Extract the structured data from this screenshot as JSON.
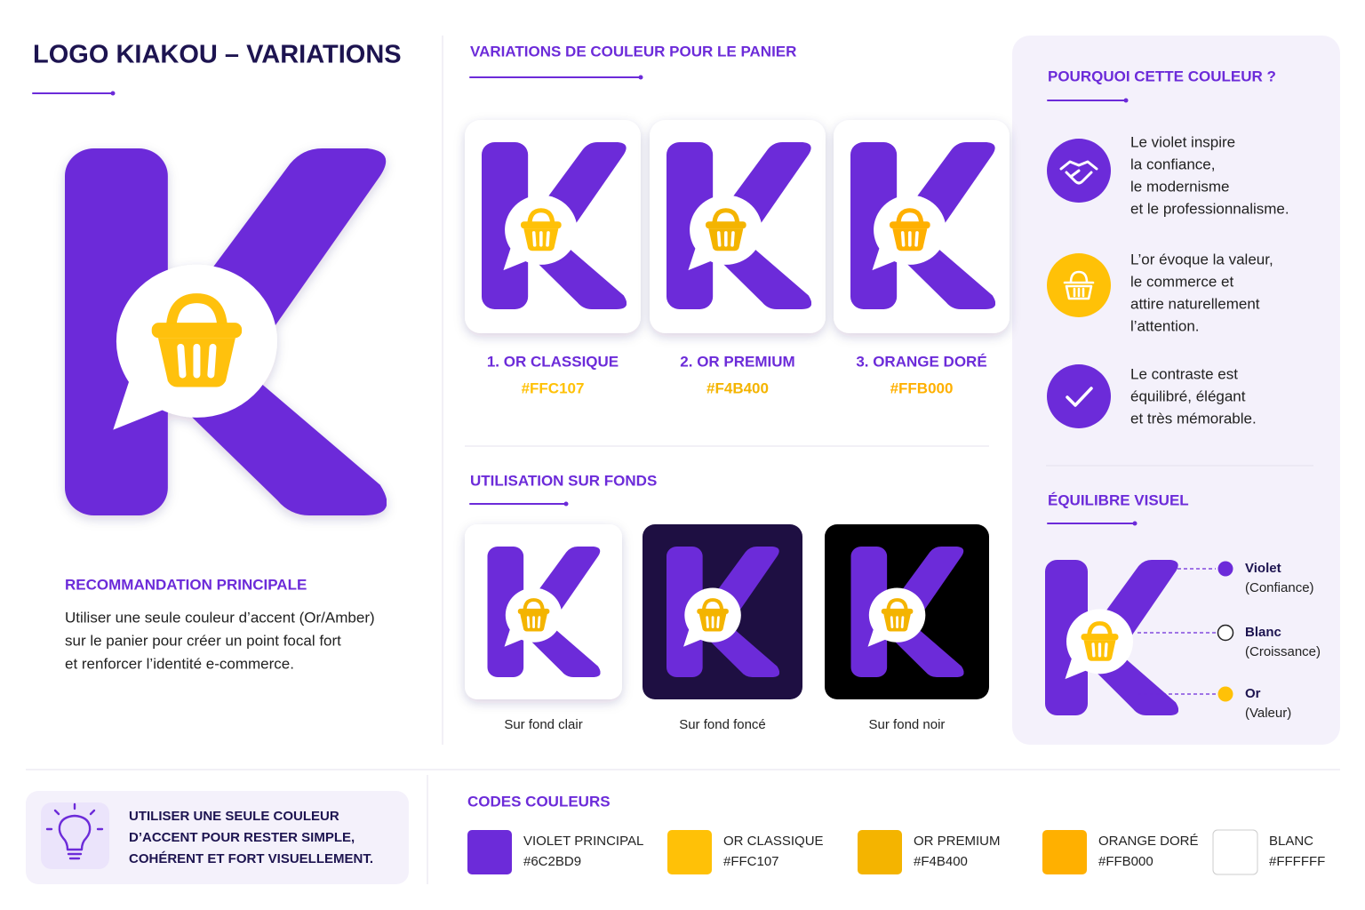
{
  "header": {
    "title": "LOGO KIAKOU – VARIATIONS"
  },
  "recommendation": {
    "title": "RECOMMANDATION PRINCIPALE",
    "lines": [
      "Utiliser une seule couleur d’accent (Or/Amber)",
      "sur le panier pour créer un point focal fort",
      "et renforcer l’identité e-commerce."
    ]
  },
  "variations": {
    "title": "VARIATIONS DE COULEUR POUR LE PANIER",
    "items": [
      {
        "label": "1. OR CLASSIQUE",
        "code": "#FFC107"
      },
      {
        "label": "2. OR PREMIUM",
        "code": "#F4B400"
      },
      {
        "label": "3. ORANGE DORÉ",
        "code": "#FFB000"
      }
    ]
  },
  "backgrounds": {
    "title": "UTILISATION SUR FONDS",
    "items": [
      "Sur fond clair",
      "Sur fond foncé",
      "Sur fond noir"
    ]
  },
  "why": {
    "title": "POURQUOI CETTE COULEUR ?",
    "items": [
      {
        "lines": [
          "Le violet inspire",
          "la confiance,",
          "le modernisme",
          "et le professionnalisme."
        ]
      },
      {
        "lines": [
          "L’or évoque la valeur,",
          "le commerce et",
          "attire naturellement",
          "l’attention."
        ]
      },
      {
        "lines": [
          "Le contraste est",
          "équilibré, élégant",
          "et très mémorable."
        ]
      }
    ]
  },
  "balance": {
    "title": "ÉQUILIBRE VISUEL",
    "items": [
      {
        "name": "Violet",
        "note": "(Confiance)"
      },
      {
        "name": "Blanc",
        "note": "(Croissance)"
      },
      {
        "name": "Or",
        "note": "(Valeur)"
      }
    ]
  },
  "tip": {
    "lines": [
      "UTILISER UNE SEULE COULEUR",
      "D’ACCENT POUR RESTER SIMPLE,",
      "COHÉRENT ET FORT VISUELLEMENT."
    ]
  },
  "codes": {
    "title": "CODES COULEURS",
    "items": [
      {
        "name": "VIOLET PRINCIPAL",
        "hex": "#6C2BD9"
      },
      {
        "name": "OR CLASSIQUE",
        "hex": "#FFC107"
      },
      {
        "name": "OR PREMIUM",
        "hex": "#F4B400"
      },
      {
        "name": "ORANGE DORÉ",
        "hex": "#FFB000"
      },
      {
        "name": "BLANC",
        "hex": "#FFFFFF"
      }
    ]
  }
}
